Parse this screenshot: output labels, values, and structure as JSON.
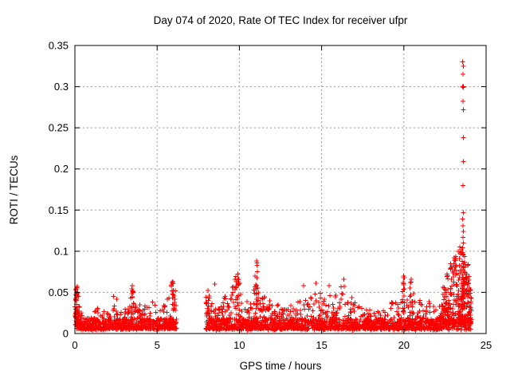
{
  "window": {
    "kind": "gnuplot-chart",
    "background": "#ffffff"
  },
  "chart_data": {
    "type": "scatter",
    "title": "Day 074 of 2020, Rate Of TEC Index for receiver ufpr",
    "xlabel": "GPS time / hours",
    "ylabel": "ROTI / TECUs",
    "xlim": [
      0,
      25
    ],
    "ylim": [
      0,
      0.35
    ],
    "x_ticks": {
      "values": [
        0,
        5,
        10,
        15,
        20,
        25
      ],
      "labels": [
        "0",
        "5",
        "10",
        "15",
        "20",
        "25"
      ]
    },
    "y_ticks": {
      "values": [
        0,
        0.05,
        0.1,
        0.15,
        0.2,
        0.25,
        0.3,
        0.35
      ],
      "labels": [
        "0",
        "0.05",
        "0.1",
        "0.15",
        "0.2",
        "0.25",
        "0.3",
        "0.35"
      ]
    },
    "grid": {
      "on": true,
      "color": "#9a9a9a",
      "style": "dotted"
    },
    "legend": {
      "visible": false
    },
    "marker": {
      "shape": "plus",
      "size": 7,
      "color": "#ff0000"
    },
    "axis_color": "#000000",
    "scatter_model": {
      "seed": 42,
      "description": "Dense red + scatter: quiet band 0.005-0.05 TECU from 0-6.2h, data gap 6.2-7.95h, active band 7.95-24.1h with spikes, strong enhancement 22.4-24h and an isolated high column near 23.6h reaching 0.33",
      "segments": [
        {
          "start": 0.0,
          "end": 6.2,
          "rate": 70,
          "pow": 3,
          "base": 0.006,
          "base_rate": 45,
          "envelope": [
            [
              0.0,
              0.05
            ],
            [
              0.15,
              0.057
            ],
            [
              0.3,
              0.045
            ],
            [
              0.5,
              0.022
            ],
            [
              0.8,
              0.018
            ],
            [
              1.0,
              0.02
            ],
            [
              1.3,
              0.032
            ],
            [
              1.6,
              0.028
            ],
            [
              1.9,
              0.03
            ],
            [
              2.2,
              0.042
            ],
            [
              2.45,
              0.048
            ],
            [
              2.7,
              0.03
            ],
            [
              3.0,
              0.032
            ],
            [
              3.3,
              0.04
            ],
            [
              3.5,
              0.057
            ],
            [
              3.7,
              0.035
            ],
            [
              4.0,
              0.038
            ],
            [
              4.3,
              0.042
            ],
            [
              4.6,
              0.035
            ],
            [
              4.9,
              0.045
            ],
            [
              5.05,
              0.057
            ],
            [
              5.2,
              0.04
            ],
            [
              5.5,
              0.05
            ],
            [
              5.75,
              0.05
            ],
            [
              5.95,
              0.062
            ],
            [
              6.1,
              0.055
            ],
            [
              6.2,
              0.04
            ]
          ]
        },
        {
          "start": 7.95,
          "end": 22.35,
          "rate": 70,
          "pow": 3,
          "base": 0.006,
          "base_rate": 45,
          "envelope": [
            [
              7.95,
              0.045
            ],
            [
              8.1,
              0.055
            ],
            [
              8.3,
              0.04
            ],
            [
              8.6,
              0.035
            ],
            [
              8.9,
              0.04
            ],
            [
              9.2,
              0.05
            ],
            [
              9.5,
              0.055
            ],
            [
              9.75,
              0.065
            ],
            [
              9.9,
              0.07
            ],
            [
              10.0,
              0.06
            ],
            [
              10.2,
              0.045
            ],
            [
              10.5,
              0.042
            ],
            [
              10.8,
              0.055
            ],
            [
              11.0,
              0.062
            ],
            [
              11.15,
              0.058
            ],
            [
              11.4,
              0.045
            ],
            [
              11.7,
              0.052
            ],
            [
              11.95,
              0.05
            ],
            [
              12.2,
              0.038
            ],
            [
              12.5,
              0.035
            ],
            [
              12.8,
              0.032
            ],
            [
              13.1,
              0.035
            ],
            [
              13.4,
              0.032
            ],
            [
              13.7,
              0.045
            ],
            [
              13.9,
              0.057
            ],
            [
              14.1,
              0.045
            ],
            [
              14.4,
              0.055
            ],
            [
              14.65,
              0.06
            ],
            [
              14.9,
              0.05
            ],
            [
              15.2,
              0.052
            ],
            [
              15.45,
              0.057
            ],
            [
              15.7,
              0.045
            ],
            [
              15.95,
              0.05
            ],
            [
              16.2,
              0.058
            ],
            [
              16.35,
              0.065
            ],
            [
              16.6,
              0.04
            ],
            [
              16.9,
              0.045
            ],
            [
              17.2,
              0.04
            ],
            [
              17.5,
              0.035
            ],
            [
              17.8,
              0.03
            ],
            [
              18.1,
              0.028
            ],
            [
              18.4,
              0.032
            ],
            [
              18.7,
              0.028
            ],
            [
              19.0,
              0.032
            ],
            [
              19.3,
              0.04
            ],
            [
              19.6,
              0.038
            ],
            [
              19.85,
              0.055
            ],
            [
              20.0,
              0.072
            ],
            [
              20.2,
              0.045
            ],
            [
              20.45,
              0.065
            ],
            [
              20.7,
              0.05
            ],
            [
              20.95,
              0.042
            ],
            [
              21.2,
              0.035
            ],
            [
              21.5,
              0.04
            ],
            [
              21.8,
              0.035
            ],
            [
              22.1,
              0.04
            ],
            [
              22.35,
              0.05
            ]
          ]
        },
        {
          "start": 22.35,
          "end": 24.1,
          "rate": 170,
          "pow": 1.7,
          "base": 0.012,
          "base_rate": 60,
          "envelope": [
            [
              22.35,
              0.055
            ],
            [
              22.5,
              0.065
            ],
            [
              22.65,
              0.072
            ],
            [
              22.8,
              0.082
            ],
            [
              23.0,
              0.09
            ],
            [
              23.2,
              0.096
            ],
            [
              23.35,
              0.1
            ],
            [
              23.5,
              0.102
            ],
            [
              23.65,
              0.098
            ],
            [
              23.8,
              0.092
            ],
            [
              23.95,
              0.082
            ],
            [
              24.1,
              0.055
            ]
          ]
        }
      ],
      "extra_clusters": [
        {
          "start": 0.03,
          "end": 0.3,
          "count": 45,
          "ymin": 0.012,
          "ymax": 0.056,
          "pow": 1.2
        },
        {
          "start": 3.45,
          "end": 3.6,
          "count": 8,
          "ymin": 0.025,
          "ymax": 0.056,
          "pow": 1
        },
        {
          "start": 5.85,
          "end": 6.1,
          "count": 10,
          "ymin": 0.03,
          "ymax": 0.062,
          "pow": 1
        },
        {
          "start": 7.95,
          "end": 8.2,
          "count": 12,
          "ymin": 0.02,
          "ymax": 0.054,
          "pow": 1
        },
        {
          "start": 9.7,
          "end": 10.05,
          "count": 12,
          "ymin": 0.03,
          "ymax": 0.07,
          "pow": 1.2
        },
        {
          "start": 11.0,
          "end": 11.15,
          "count": 12,
          "ymin": 0.03,
          "ymax": 0.062,
          "pow": 1
        },
        {
          "start": 19.9,
          "end": 20.05,
          "count": 14,
          "ymin": 0.025,
          "ymax": 0.07,
          "pow": 1.3
        },
        {
          "start": 20.35,
          "end": 20.55,
          "count": 12,
          "ymin": 0.025,
          "ymax": 0.064,
          "pow": 1.3
        },
        {
          "start": 23.54,
          "end": 23.66,
          "count": 25,
          "ymin": 0.03,
          "ymax": 0.1,
          "pow": 1
        }
      ],
      "outliers": [
        [
          23.58,
          0.33
        ],
        [
          23.62,
          0.325
        ],
        [
          23.6,
          0.315
        ],
        [
          23.58,
          0.3
        ],
        [
          23.61,
          0.3
        ],
        [
          23.63,
          0.299
        ],
        [
          23.6,
          0.282
        ],
        [
          23.62,
          0.272
        ],
        [
          23.61,
          0.238
        ],
        [
          23.62,
          0.209
        ],
        [
          23.6,
          0.18
        ],
        [
          23.62,
          0.147
        ],
        [
          23.58,
          0.139
        ],
        [
          23.6,
          0.131
        ],
        [
          23.62,
          0.124
        ],
        [
          23.59,
          0.117
        ],
        [
          23.61,
          0.11
        ],
        [
          23.57,
          0.104
        ],
        [
          23.4,
          0.105
        ],
        [
          23.45,
          0.098
        ],
        [
          23.3,
          0.1
        ],
        [
          23.5,
          0.102
        ],
        [
          11.05,
          0.088
        ],
        [
          11.08,
          0.086
        ],
        [
          11.06,
          0.083
        ],
        [
          11.1,
          0.075
        ],
        [
          11.07,
          0.068
        ],
        [
          11.05,
          0.058
        ],
        [
          8.5,
          0.06
        ],
        [
          9.75,
          0.066
        ],
        [
          9.9,
          0.072
        ],
        [
          9.95,
          0.066
        ],
        [
          10.95,
          0.07
        ],
        [
          19.98,
          0.07
        ],
        [
          19.96,
          0.062
        ],
        [
          20.45,
          0.066
        ],
        [
          16.35,
          0.066
        ],
        [
          13.9,
          0.058
        ],
        [
          14.65,
          0.061
        ],
        [
          15.45,
          0.058
        ],
        [
          5.95,
          0.063
        ],
        [
          3.5,
          0.058
        ],
        [
          0.15,
          0.057
        ],
        [
          22.62,
          0.072
        ],
        [
          22.85,
          0.085
        ],
        [
          23.05,
          0.092
        ]
      ]
    }
  }
}
